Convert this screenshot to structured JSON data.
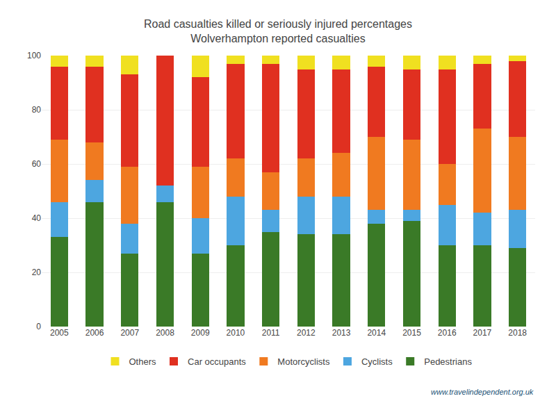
{
  "chart_data": {
    "type": "bar",
    "stacked": true,
    "title": "Road casualties killed or seriously injured percentages",
    "subtitle": "Wolverhampton reported casualties",
    "categories": [
      "2005",
      "2006",
      "2007",
      "2008",
      "2009",
      "2010",
      "2011",
      "2012",
      "2013",
      "2014",
      "2015",
      "2016",
      "2017",
      "2018"
    ],
    "series": [
      {
        "name": "Pedestrians",
        "color": "#3a7a27",
        "values": [
          33,
          46,
          27,
          46,
          27,
          30,
          35,
          34,
          34,
          38,
          39,
          30,
          30,
          29
        ]
      },
      {
        "name": "Cyclists",
        "color": "#4da6e0",
        "values": [
          13,
          8,
          11,
          6,
          13,
          18,
          8,
          14,
          14,
          5,
          4,
          15,
          12,
          14
        ]
      },
      {
        "name": "Motorcyclists",
        "color": "#f07a20",
        "values": [
          23,
          14,
          21,
          0,
          19,
          14,
          14,
          14,
          16,
          27,
          26,
          15,
          31,
          27
        ]
      },
      {
        "name": "Car occupants",
        "color": "#e03020",
        "values": [
          27,
          28,
          34,
          48,
          33,
          35,
          40,
          33,
          31,
          26,
          26,
          35,
          24,
          28
        ]
      },
      {
        "name": "Others",
        "color": "#f0e020",
        "values": [
          4,
          4,
          7,
          0,
          8,
          3,
          3,
          5,
          5,
          4,
          5,
          5,
          3,
          2
        ]
      }
    ],
    "ylim": [
      0,
      100
    ],
    "yticks": [
      0,
      20,
      40,
      60,
      80,
      100
    ],
    "grid": true,
    "legend": "bottom",
    "annotations": [
      "www.travelindependent.org.uk"
    ]
  }
}
